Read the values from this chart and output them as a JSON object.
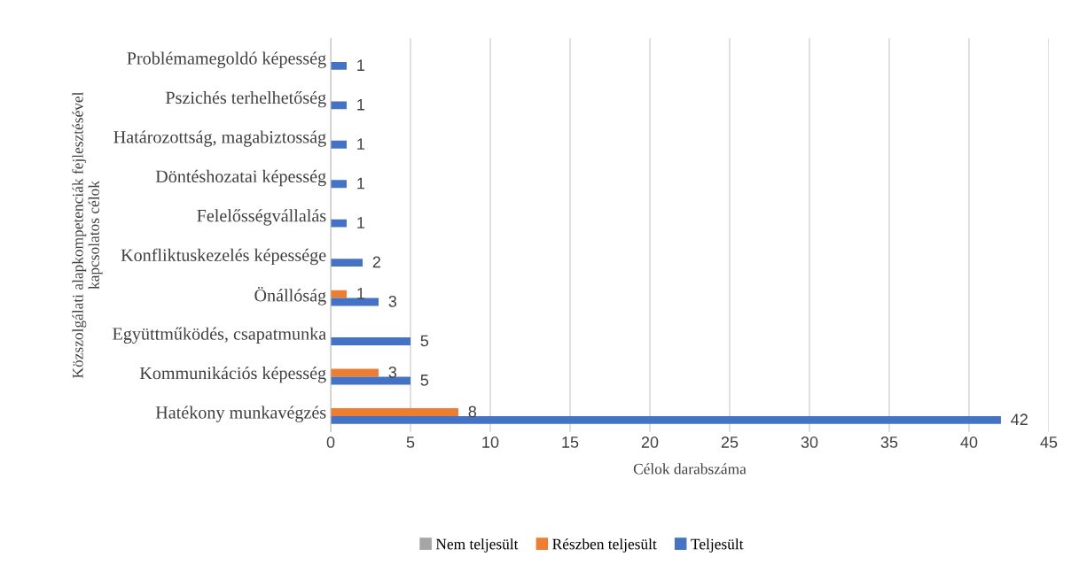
{
  "chart_data": {
    "type": "bar",
    "orientation": "horizontal",
    "ylabel": "Közszolgálati alapkompetenciák fejlesztésével\nkapcsolatos célok",
    "xlabel": "Célok darabszáma",
    "categories": [
      "Problémamegoldó képesség",
      "Pszichés terhelhetőség",
      "Határozottság, magabiztosság",
      "Döntéshozatai képesség",
      "Felelősségvállalás",
      "Konfliktuskezelés képessége",
      "Önállóság",
      "Együttműködés, csapatmunka",
      "Kommunikációs képesség",
      "Hatékony munkavégzés"
    ],
    "series": [
      {
        "name": "Nem teljesült",
        "color": "#a5a5a5",
        "values": [
          null,
          null,
          null,
          null,
          null,
          null,
          null,
          null,
          null,
          null
        ]
      },
      {
        "name": "Részben teljesült",
        "color": "#ed7d31",
        "values": [
          null,
          null,
          null,
          null,
          null,
          null,
          1,
          null,
          3,
          8
        ]
      },
      {
        "name": "Teljesült",
        "color": "#4472c4",
        "values": [
          1,
          1,
          1,
          1,
          1,
          2,
          3,
          5,
          5,
          42
        ]
      }
    ],
    "data_labels": true,
    "xlim": [
      0,
      45
    ],
    "xticks": [
      0,
      5,
      10,
      15,
      20,
      25,
      30,
      35,
      40,
      45
    ],
    "grid": "x",
    "legend": "bottom"
  }
}
